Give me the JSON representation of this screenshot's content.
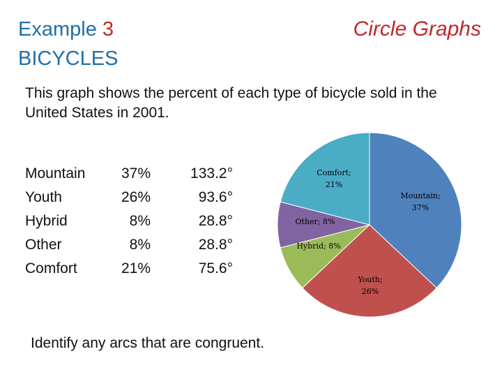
{
  "header": {
    "example_label": "Example",
    "example_number": "3",
    "subtitle": "BICYCLES",
    "topic": "Circle Graphs"
  },
  "description": "This graph shows the percent of each type of bicycle sold in the United States in 2001.",
  "table": {
    "names": [
      "Mountain",
      "Youth",
      "Hybrid",
      "Other",
      "Comfort"
    ],
    "percents": [
      "37%",
      "26%",
      "8%",
      "8%",
      "21%"
    ],
    "degrees": [
      "133.2°",
      "93.6°",
      "28.8°",
      "28.8°",
      "75.6°"
    ]
  },
  "question": "Identify any arcs that are congruent.",
  "chart_data": {
    "type": "pie",
    "slices": [
      {
        "name": "Mountain",
        "value": 37,
        "label_name": "Mountain;",
        "label_value": "37%",
        "color": "#4f81bd"
      },
      {
        "name": "Youth",
        "value": 26,
        "label_name": "Youth;",
        "label_value": "26%",
        "color": "#c0504d"
      },
      {
        "name": "Hybrid",
        "value": 8,
        "label_name": "Hybrid; 8%",
        "label_value": "",
        "color": "#9bbb59"
      },
      {
        "name": "Other",
        "value": 8,
        "label_name": "Other; 8%",
        "label_value": "",
        "color": "#8064a2"
      },
      {
        "name": "Comfort",
        "value": 21,
        "label_name": "Comfort;",
        "label_value": "21%",
        "color": "#4bacc6"
      }
    ],
    "start": "top, clockwise",
    "legend": "none"
  }
}
